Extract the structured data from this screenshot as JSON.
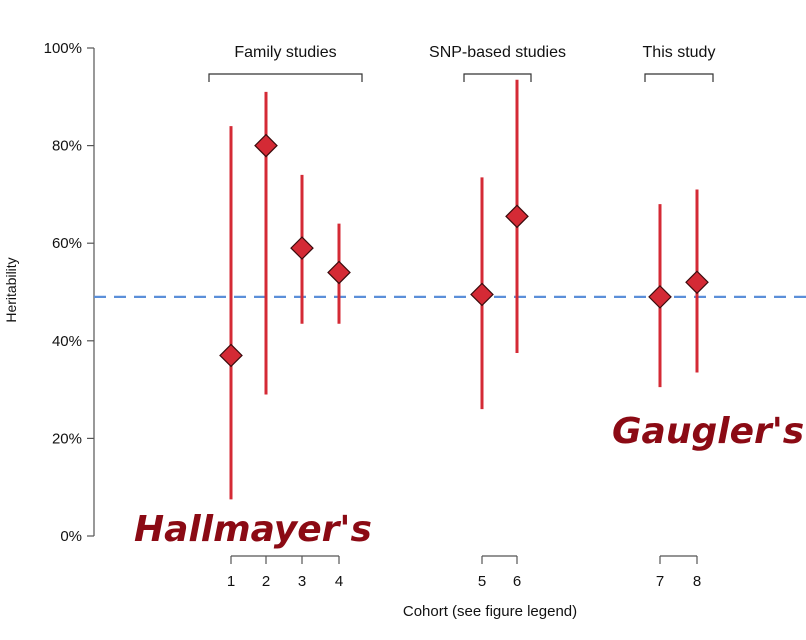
{
  "chart_data": {
    "type": "scatter",
    "title": "",
    "xlabel": "Cohort (see figure legend)",
    "ylabel": "Heritability",
    "ylim": [
      0,
      100
    ],
    "yticks": [
      0,
      20,
      40,
      60,
      80,
      100
    ],
    "ytick_labels": [
      "0%",
      "20%",
      "40%",
      "60%",
      "80%",
      "100%"
    ],
    "grid": false,
    "reference_line": {
      "y": 49,
      "style": "dashed",
      "color": "#5b8fd9"
    },
    "points": [
      {
        "cohort": "1",
        "estimate": 37,
        "lower": 7.5,
        "upper": 84
      },
      {
        "cohort": "2",
        "estimate": 80,
        "lower": 29,
        "upper": 91
      },
      {
        "cohort": "3",
        "estimate": 59,
        "lower": 43.5,
        "upper": 74
      },
      {
        "cohort": "4",
        "estimate": 54,
        "lower": 43.5,
        "upper": 64
      },
      {
        "cohort": "5",
        "estimate": 49.5,
        "lower": 26,
        "upper": 73.5
      },
      {
        "cohort": "6",
        "estimate": 65.5,
        "lower": 37.5,
        "upper": 93.5
      },
      {
        "cohort": "7",
        "estimate": 49,
        "lower": 30.5,
        "upper": 68
      },
      {
        "cohort": "8",
        "estimate": 52,
        "lower": 33.5,
        "upper": 71
      }
    ],
    "groups": [
      {
        "label": "Family studies",
        "cohorts": [
          "1",
          "2",
          "3",
          "4"
        ]
      },
      {
        "label": "SNP-based studies",
        "cohorts": [
          "5",
          "6"
        ]
      },
      {
        "label": "This study",
        "cohorts": [
          "7",
          "8"
        ]
      }
    ],
    "annotations": [
      "Hallmayer's",
      "Gaugler's"
    ],
    "colors": {
      "marker": "#d42a35",
      "marker_edge": "#3a0a0c",
      "errorbar": "#d42a35",
      "annotation": "#8b0a14",
      "axis": "#555555"
    }
  }
}
